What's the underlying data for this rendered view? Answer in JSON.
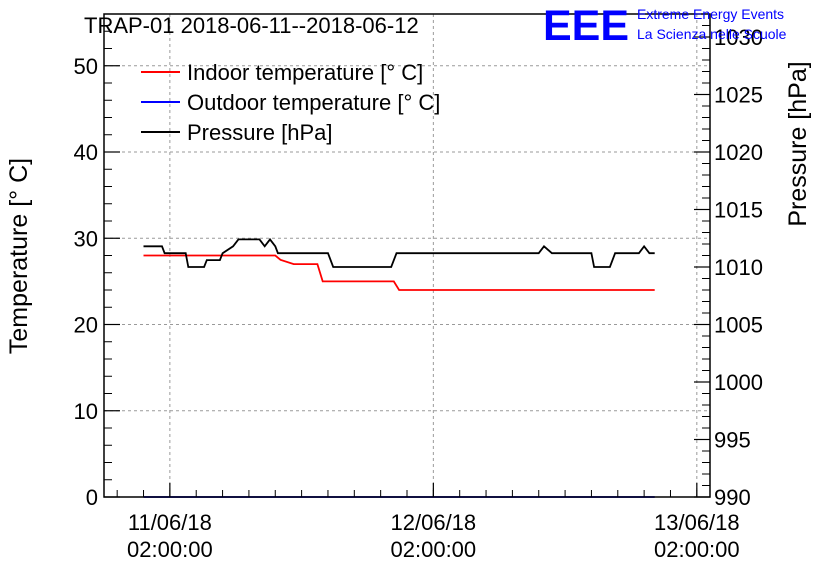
{
  "chart_data": {
    "type": "line",
    "title": "TRAP-01 2018-06-11--2018-06-12",
    "ylabel": "Temperature [° C]",
    "y2label": "Pressure [hPa]",
    "ylim": [
      0,
      56
    ],
    "y2lim": [
      990,
      1032
    ],
    "yticks": [
      0,
      10,
      20,
      30,
      40,
      50
    ],
    "y2ticks": [
      990,
      995,
      1000,
      1005,
      1010,
      1015,
      1020,
      1025,
      1030
    ],
    "xlim": [
      -0.25,
      2.05
    ],
    "xticks": [
      {
        "pos": 0,
        "line1": "11/06/18",
        "line2": "02:00:00"
      },
      {
        "pos": 1,
        "line1": "12/06/18",
        "line2": "02:00:00"
      },
      {
        "pos": 2,
        "line1": "13/06/18",
        "line2": "02:00:00"
      }
    ],
    "grid": true,
    "legend_position": "top-left",
    "series": [
      {
        "name": "Indoor temperature [° C]",
        "axis": "left",
        "color": "#ff0000",
        "x": [
          -0.1,
          0.4,
          0.42,
          0.47,
          0.56,
          0.58,
          0.85,
          0.87,
          1.84
        ],
        "y": [
          28,
          28,
          27.5,
          27,
          27,
          25,
          25,
          24,
          24
        ]
      },
      {
        "name": "Outdoor temperature [° C]",
        "axis": "left",
        "color": "#0000ff",
        "x": [
          -0.1,
          1.84
        ],
        "y": [
          0,
          0
        ]
      },
      {
        "name": "Pressure [hPa]",
        "axis": "right",
        "color": "#000000",
        "x": [
          -0.1,
          -0.03,
          -0.02,
          0.06,
          0.07,
          0.13,
          0.14,
          0.19,
          0.2,
          0.24,
          0.26,
          0.34,
          0.36,
          0.38,
          0.4,
          0.41,
          0.44,
          0.45,
          0.6,
          0.62,
          0.83,
          0.84,
          0.86,
          0.87,
          1.4,
          1.42,
          1.45,
          1.46,
          1.6,
          1.61,
          1.67,
          1.69,
          1.78,
          1.8,
          1.82,
          1.84
        ],
        "y": [
          1011.8,
          1011.8,
          1011.2,
          1011.2,
          1010.0,
          1010.0,
          1010.6,
          1010.6,
          1011.2,
          1011.8,
          1012.4,
          1012.4,
          1011.8,
          1012.4,
          1011.8,
          1011.2,
          1011.2,
          1011.2,
          1011.2,
          1010.0,
          1010.0,
          1010.0,
          1011.2,
          1011.2,
          1011.2,
          1011.8,
          1011.2,
          1011.2,
          1011.2,
          1010.0,
          1010.0,
          1011.2,
          1011.2,
          1011.8,
          1011.2,
          1011.2
        ]
      }
    ]
  },
  "logo": {
    "text": "EEE",
    "line1": "Extreme Energy Events",
    "line2": "La Scienza nelle Scuole",
    "color": "#0000ff"
  }
}
